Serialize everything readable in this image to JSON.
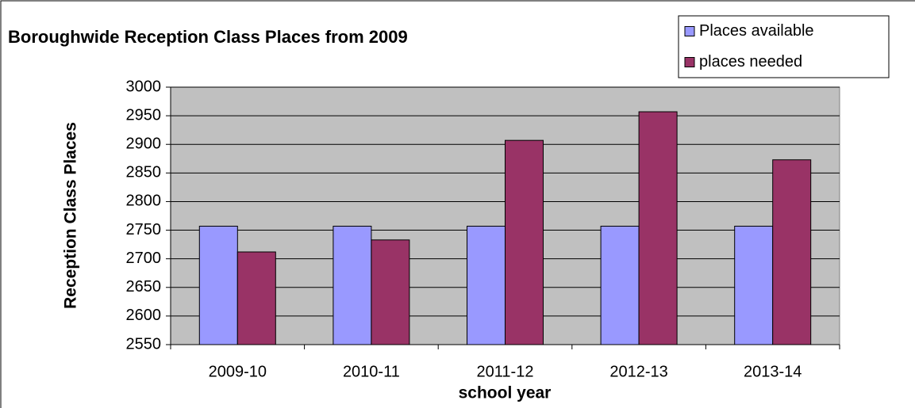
{
  "chart_data": {
    "type": "bar",
    "title": "Boroughwide Reception Class Places from 2009",
    "x_label": "school year",
    "y_label": "Reception Class Places",
    "categories": [
      "2009-10",
      "2010-11",
      "2011-12",
      "2012-13",
      "2013-14"
    ],
    "series": [
      {
        "name": "Places available",
        "color": "#9999ff",
        "values": [
          2757,
          2757,
          2757,
          2757,
          2757
        ]
      },
      {
        "name": "places needed",
        "color": "#993366",
        "values": [
          2712,
          2733,
          2907,
          2957,
          2873
        ]
      }
    ],
    "ylim": [
      2550,
      3000
    ],
    "yticks": [
      2550,
      2600,
      2650,
      2700,
      2750,
      2800,
      2850,
      2900,
      2950,
      3000
    ],
    "grid": true,
    "legend": "top-right"
  }
}
